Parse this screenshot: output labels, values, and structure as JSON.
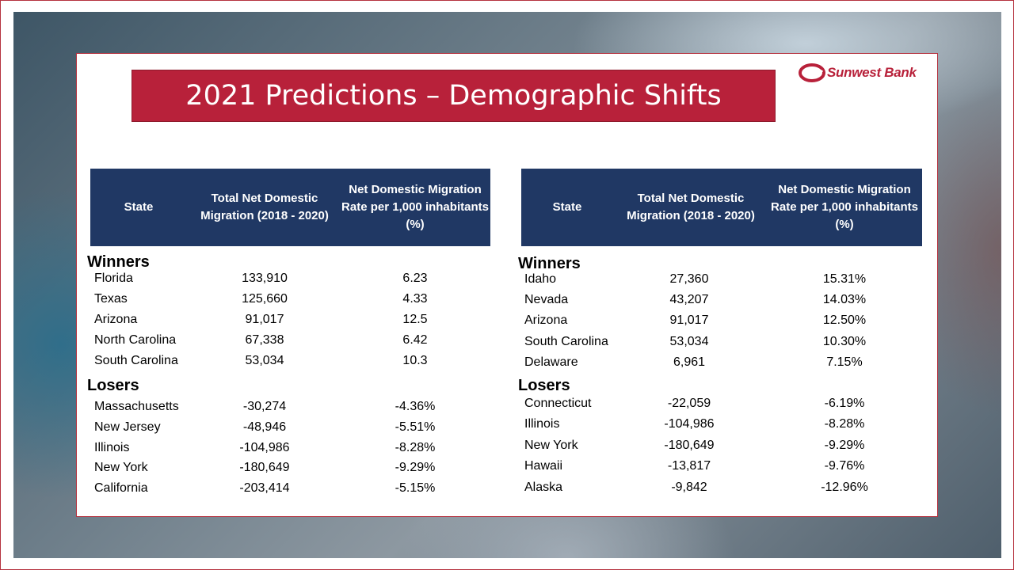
{
  "title": "2021 Predictions – Demographic Shifts",
  "logo": {
    "text": "Sunwest Bank",
    "icon": "sunwest-swirl-icon"
  },
  "colors": {
    "title_bg": "#b8213a",
    "header_bg": "#203864",
    "border": "#b5323f"
  },
  "headers": {
    "state": "State",
    "total": "Total Net Domestic Migration (2018 - 2020)",
    "rate": "Net Domestic Migration Rate per 1,000 inhabitants (%)"
  },
  "left_table": {
    "winners_label": "Winners",
    "losers_label": "Losers",
    "winners": [
      {
        "state": "Florida",
        "total": "133,910",
        "rate": "6.23"
      },
      {
        "state": "Texas",
        "total": "125,660",
        "rate": "4.33"
      },
      {
        "state": "Arizona",
        "total": "91,017",
        "rate": "12.5"
      },
      {
        "state": "North Carolina",
        "total": "67,338",
        "rate": "6.42"
      },
      {
        "state": "South Carolina",
        "total": "53,034",
        "rate": "10.3"
      }
    ],
    "losers": [
      {
        "state": "Massachusetts",
        "total": "-30,274",
        "rate": "-4.36%"
      },
      {
        "state": "New Jersey",
        "total": "-48,946",
        "rate": "-5.51%"
      },
      {
        "state": "Illinois",
        "total": "-104,986",
        "rate": "-8.28%"
      },
      {
        "state": "New York",
        "total": "-180,649",
        "rate": "-9.29%"
      },
      {
        "state": "California",
        "total": "-203,414",
        "rate": "-5.15%"
      }
    ]
  },
  "right_table": {
    "winners_label": "Winners",
    "losers_label": "Losers",
    "winners": [
      {
        "state": "Idaho",
        "total": "27,360",
        "rate": "15.31%"
      },
      {
        "state": "Nevada",
        "total": "43,207",
        "rate": "14.03%"
      },
      {
        "state": "Arizona",
        "total": "91,017",
        "rate": "12.50%"
      },
      {
        "state": "South Carolina",
        "total": "53,034",
        "rate": "10.30%"
      },
      {
        "state": "Delaware",
        "total": "6,961",
        "rate": "7.15%"
      }
    ],
    "losers": [
      {
        "state": "Connecticut",
        "total": "-22,059",
        "rate": "-6.19%"
      },
      {
        "state": "Illinois",
        "total": "-104,986",
        "rate": "-8.28%"
      },
      {
        "state": "New York",
        "total": "-180,649",
        "rate": "-9.29%"
      },
      {
        "state": "Hawaii",
        "total": "-13,817",
        "rate": "-9.76%"
      },
      {
        "state": "Alaska",
        "total": "-9,842",
        "rate": "-12.96%"
      }
    ]
  }
}
